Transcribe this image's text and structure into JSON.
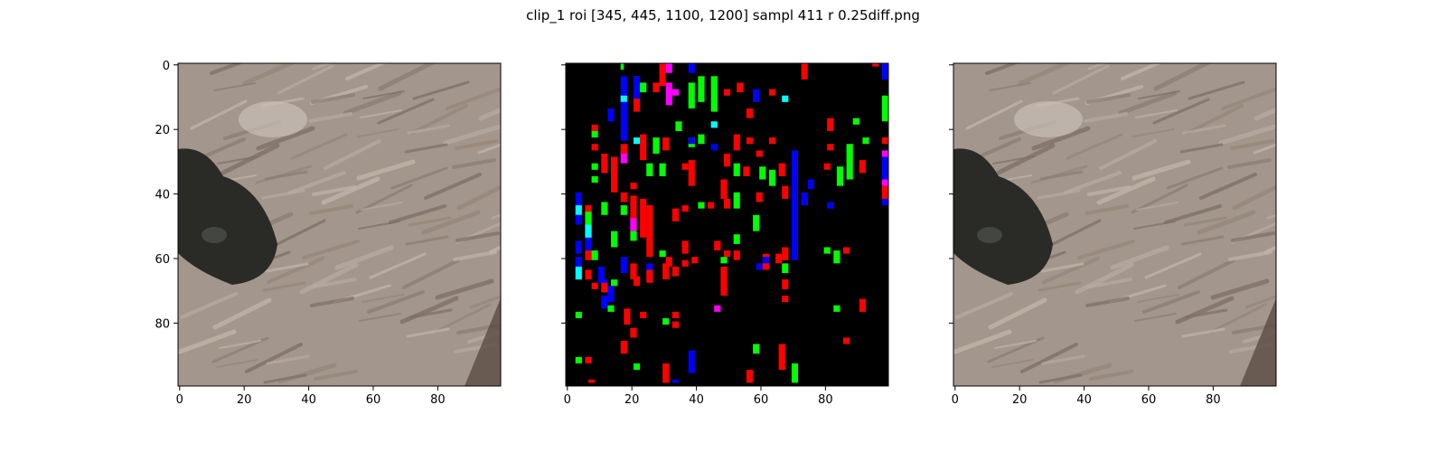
{
  "figure": {
    "title": "clip_1 roi [345, 445, 1100, 1200] sampl 411 r 0.25diff.png"
  },
  "chart_data": [
    {
      "type": "heatmap",
      "content": "image",
      "title": "",
      "xlim": [
        0,
        99
      ],
      "ylim": [
        99,
        0
      ],
      "xticks": [
        0,
        20,
        40,
        60,
        80
      ],
      "yticks": [
        0,
        20,
        40,
        60,
        80
      ],
      "image": {
        "base_color": "#a3968d",
        "stripe_colors": [
          "#8a7d73",
          "#b8aca2",
          "#7d6f66",
          "#c2b6ab",
          "#958679"
        ],
        "rect_shade": "#c8bfb8",
        "eye_color": "#2a2a26",
        "eye_highlight": "#4a4e48",
        "dark_edge": "#5a4c42"
      }
    },
    {
      "type": "heatmap",
      "content": "difference-map",
      "title": "",
      "xlim": [
        0,
        99
      ],
      "ylim": [
        99,
        0
      ],
      "xticks": [
        0,
        20,
        40,
        60,
        80
      ],
      "yticks": [
        0,
        20,
        40,
        60,
        80
      ],
      "background": "#000000",
      "colors": {
        "r": "#ff0000",
        "g": "#00ff00",
        "b": "#0000ff",
        "c": "#00ffff",
        "m": "#ff00ff"
      },
      "cells": [
        [
          "g",
          17,
          0,
          1,
          2
        ],
        [
          "r",
          21,
          4,
          2,
          11
        ],
        [
          "b",
          21,
          4,
          2,
          7
        ],
        [
          "m",
          31,
          0,
          2,
          3
        ],
        [
          "b",
          38,
          0,
          2,
          3
        ],
        [
          "r",
          95,
          0,
          2,
          1
        ],
        [
          "b",
          98,
          0,
          2,
          5
        ],
        [
          "b",
          17,
          4,
          2,
          8
        ],
        [
          "r",
          29,
          0,
          2,
          7
        ],
        [
          "g",
          23,
          6,
          2,
          3
        ],
        [
          "r",
          27,
          6,
          2,
          3
        ],
        [
          "m",
          31,
          6,
          2,
          7
        ],
        [
          "g",
          41,
          4,
          2,
          8
        ],
        [
          "g",
          45,
          4,
          2,
          11
        ],
        [
          "r",
          53,
          6,
          2,
          3
        ],
        [
          "m",
          33,
          8,
          2,
          2
        ],
        [
          "g",
          38,
          6,
          2,
          8
        ],
        [
          "r",
          49,
          8,
          2,
          2
        ],
        [
          "b",
          58,
          8,
          2,
          4
        ],
        [
          "r",
          63,
          8,
          2,
          2
        ],
        [
          "c",
          67,
          10,
          2,
          2
        ],
        [
          "r",
          73,
          0,
          2,
          5
        ],
        [
          "g",
          98,
          10,
          2,
          8
        ],
        [
          "c",
          17,
          10,
          2,
          2
        ],
        [
          "b",
          13,
          14,
          2,
          4
        ],
        [
          "b",
          17,
          12,
          2,
          12
        ],
        [
          "r",
          56,
          14,
          2,
          3
        ],
        [
          "g",
          34,
          18,
          2,
          3
        ],
        [
          "c",
          45,
          18,
          2,
          2
        ],
        [
          "g",
          41,
          22,
          2,
          3
        ],
        [
          "r",
          23,
          22,
          2,
          8
        ],
        [
          "c",
          21,
          23,
          2,
          2
        ],
        [
          "g",
          27,
          23,
          2,
          5
        ],
        [
          "r",
          30,
          23,
          2,
          4
        ],
        [
          "g",
          8,
          21,
          2,
          2
        ],
        [
          "r",
          8,
          25,
          2,
          2
        ],
        [
          "r",
          8,
          19,
          2,
          2
        ],
        [
          "r",
          81,
          17,
          2,
          4
        ],
        [
          "g",
          89,
          17,
          2,
          2
        ],
        [
          "g",
          92,
          23,
          2,
          2
        ],
        [
          "r",
          98,
          23,
          2,
          2
        ],
        [
          "m",
          98,
          27,
          2,
          2
        ],
        [
          "b",
          98,
          29,
          2,
          8
        ],
        [
          "g",
          38,
          23,
          2,
          3
        ],
        [
          "b",
          38,
          23,
          2,
          2
        ],
        [
          "b",
          45,
          25,
          2,
          2
        ],
        [
          "r",
          52,
          22,
          2,
          5
        ],
        [
          "r",
          56,
          23,
          2,
          2
        ],
        [
          "r",
          63,
          23,
          2,
          2
        ],
        [
          "r",
          49,
          28,
          2,
          4
        ],
        [
          "m",
          17,
          27,
          2,
          4
        ],
        [
          "r",
          17,
          25,
          2,
          3
        ],
        [
          "r",
          11,
          28,
          2,
          6
        ],
        [
          "r",
          14,
          29,
          2,
          11
        ],
        [
          "g",
          8,
          31,
          2,
          2
        ],
        [
          "g",
          8,
          35,
          2,
          2
        ],
        [
          "g",
          29,
          31,
          2,
          4
        ],
        [
          "g",
          25,
          31,
          2,
          4
        ],
        [
          "r",
          38,
          30,
          2,
          8
        ],
        [
          "r",
          36,
          31,
          2,
          2
        ],
        [
          "g",
          52,
          31,
          2,
          4
        ],
        [
          "r",
          66,
          31,
          2,
          4
        ],
        [
          "b",
          70,
          27,
          2,
          11
        ],
        [
          "b",
          70,
          38,
          2,
          23
        ],
        [
          "r",
          81,
          25,
          2,
          2
        ],
        [
          "g",
          84,
          32,
          2,
          6
        ],
        [
          "r",
          80,
          31,
          2,
          2
        ],
        [
          "g",
          87,
          25,
          2,
          11
        ],
        [
          "r",
          91,
          30,
          2,
          4
        ],
        [
          "r",
          59,
          27,
          2,
          2
        ],
        [
          "g",
          63,
          33,
          2,
          5
        ],
        [
          "r",
          55,
          32,
          2,
          3
        ],
        [
          "r",
          48,
          36,
          2,
          6
        ],
        [
          "g",
          60,
          32,
          2,
          4
        ],
        [
          "m",
          98,
          36,
          2,
          2
        ],
        [
          "r",
          98,
          38,
          2,
          4
        ],
        [
          "b",
          98,
          42,
          2,
          2
        ],
        [
          "r",
          67,
          38,
          2,
          4
        ],
        [
          "m",
          73,
          42,
          2,
          2
        ],
        [
          "b",
          73,
          40,
          2,
          4
        ],
        [
          "b",
          75,
          36,
          2,
          3
        ],
        [
          "r",
          20,
          37,
          2,
          2
        ],
        [
          "b",
          3,
          40,
          2,
          4
        ],
        [
          "c",
          3,
          44,
          2,
          3
        ],
        [
          "b",
          3,
          47,
          2,
          3
        ],
        [
          "r",
          6,
          44,
          2,
          3
        ],
        [
          "g",
          11,
          43,
          2,
          4
        ],
        [
          "g",
          6,
          46,
          2,
          8
        ],
        [
          "b",
          6,
          54,
          2,
          5
        ],
        [
          "c",
          6,
          50,
          2,
          4
        ],
        [
          "r",
          17,
          40,
          2,
          3
        ],
        [
          "r",
          20,
          41,
          2,
          11
        ],
        [
          "g",
          17,
          44,
          2,
          3
        ],
        [
          "m",
          20,
          48,
          2,
          4
        ],
        [
          "g",
          20,
          52,
          2,
          3
        ],
        [
          "r",
          23,
          42,
          2,
          12
        ],
        [
          "r",
          25,
          44,
          2,
          16
        ],
        [
          "r",
          33,
          45,
          2,
          4
        ],
        [
          "r",
          36,
          44,
          2,
          2
        ],
        [
          "r",
          31,
          60,
          2,
          3
        ],
        [
          "g",
          29,
          58,
          2,
          2
        ],
        [
          "g",
          41,
          43,
          2,
          2
        ],
        [
          "r",
          44,
          43,
          2,
          2
        ],
        [
          "g",
          52,
          40,
          2,
          5
        ],
        [
          "r",
          49,
          42,
          2,
          3
        ],
        [
          "r",
          59,
          40,
          2,
          3
        ],
        [
          "g",
          58,
          47,
          2,
          5
        ],
        [
          "b",
          81,
          43,
          2,
          2
        ],
        [
          "b",
          3,
          55,
          2,
          4
        ],
        [
          "b",
          3,
          60,
          2,
          3
        ],
        [
          "c",
          3,
          63,
          2,
          4
        ],
        [
          "r",
          6,
          58,
          2,
          3
        ],
        [
          "g",
          8,
          58,
          2,
          3
        ],
        [
          "g",
          14,
          52,
          2,
          5
        ],
        [
          "g",
          14,
          67,
          2,
          2
        ],
        [
          "b",
          11,
          67,
          2,
          2
        ],
        [
          "b",
          10,
          63,
          2,
          5
        ],
        [
          "b",
          13,
          69,
          2,
          5
        ],
        [
          "r",
          11,
          68,
          2,
          3
        ],
        [
          "b",
          17,
          60,
          2,
          5
        ],
        [
          "r",
          20,
          62,
          2,
          5
        ],
        [
          "r",
          21,
          66,
          2,
          3
        ],
        [
          "b",
          25,
          62,
          2,
          4
        ],
        [
          "r",
          25,
          64,
          2,
          4
        ],
        [
          "r",
          36,
          55,
          2,
          4
        ],
        [
          "r",
          39,
          60,
          2,
          2
        ],
        [
          "r",
          33,
          63,
          2,
          3
        ],
        [
          "r",
          36,
          61,
          2,
          2
        ],
        [
          "r",
          30,
          62,
          2,
          5
        ],
        [
          "r",
          46,
          55,
          2,
          3
        ],
        [
          "r",
          49,
          58,
          2,
          2
        ],
        [
          "g",
          52,
          53,
          2,
          3
        ],
        [
          "r",
          52,
          58,
          2,
          3
        ],
        [
          "b",
          59,
          62,
          2,
          2
        ],
        [
          "r",
          61,
          59,
          2,
          5
        ],
        [
          "r",
          65,
          59,
          2,
          3
        ],
        [
          "r",
          67,
          57,
          2,
          4
        ],
        [
          "b",
          61,
          60,
          2,
          2
        ],
        [
          "r",
          48,
          63,
          2,
          9
        ],
        [
          "g",
          48,
          60,
          2,
          2
        ],
        [
          "g",
          67,
          62,
          2,
          3
        ],
        [
          "r",
          67,
          67,
          2,
          3
        ],
        [
          "r",
          67,
          72,
          2,
          2
        ],
        [
          "g",
          80,
          57,
          2,
          2
        ],
        [
          "r",
          86,
          57,
          2,
          2
        ],
        [
          "g",
          83,
          58,
          2,
          4
        ],
        [
          "r",
          6,
          64,
          2,
          3
        ],
        [
          "b",
          11,
          72,
          2,
          4
        ],
        [
          "r",
          8,
          68,
          2,
          2
        ],
        [
          "g",
          3,
          77,
          2,
          2
        ],
        [
          "g",
          13,
          75,
          2,
          2
        ],
        [
          "r",
          18,
          76,
          2,
          5
        ],
        [
          "r",
          23,
          77,
          2,
          2
        ],
        [
          "g",
          30,
          79,
          2,
          2
        ],
        [
          "r",
          33,
          80,
          2,
          2
        ],
        [
          "r",
          33,
          77,
          2,
          2
        ],
        [
          "m",
          46,
          75,
          2,
          2
        ],
        [
          "g",
          83,
          75,
          2,
          2
        ],
        [
          "r",
          91,
          73,
          2,
          4
        ],
        [
          "r",
          20,
          82,
          2,
          3
        ],
        [
          "r",
          17,
          86,
          2,
          4
        ],
        [
          "r",
          86,
          85,
          2,
          2
        ],
        [
          "b",
          38,
          89,
          2,
          7
        ],
        [
          "g",
          58,
          87,
          2,
          3
        ],
        [
          "r",
          66,
          87,
          2,
          8
        ],
        [
          "g",
          70,
          93,
          2,
          6
        ],
        [
          "g",
          3,
          91,
          2,
          2
        ],
        [
          "r",
          6,
          91,
          2,
          2
        ],
        [
          "g",
          21,
          93,
          2,
          2
        ],
        [
          "r",
          30,
          93,
          2,
          6
        ],
        [
          "b",
          33,
          98,
          2,
          1
        ],
        [
          "r",
          56,
          95,
          2,
          4
        ],
        [
          "r",
          7,
          98,
          2,
          1
        ]
      ]
    },
    {
      "type": "heatmap",
      "content": "image",
      "title": "",
      "xlim": [
        0,
        99
      ],
      "ylim": [
        99,
        0
      ],
      "xticks": [
        0,
        20,
        40,
        60,
        80
      ],
      "yticks": [
        0,
        20,
        40,
        60,
        80
      ],
      "image": {
        "base_color": "#a3968d",
        "stripe_colors": [
          "#8a7d73",
          "#b8aca2",
          "#7d6f66",
          "#c2b6ab",
          "#958679"
        ],
        "rect_shade": "#c8bfb8",
        "eye_color": "#2a2a26",
        "eye_highlight": "#4a4e48",
        "dark_edge": "#5a4c42"
      }
    }
  ]
}
